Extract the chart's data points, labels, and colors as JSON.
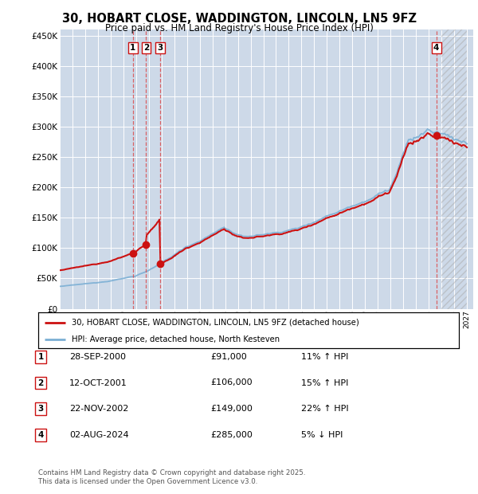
{
  "title": "30, HOBART CLOSE, WADDINGTON, LINCOLN, LN5 9FZ",
  "subtitle": "Price paid vs. HM Land Registry's House Price Index (HPI)",
  "background_color": "#dce6f0",
  "plot_bg_color": "#cdd9e8",
  "grid_color": "#ffffff",
  "hpi_color": "#7bafd4",
  "price_color": "#cc1111",
  "dashed_color": "#dd4444",
  "ylim": [
    0,
    460000
  ],
  "yticks": [
    0,
    50000,
    100000,
    150000,
    200000,
    250000,
    300000,
    350000,
    400000,
    450000
  ],
  "xlim_start": 1995.0,
  "xlim_end": 2027.5,
  "transaction_labels": [
    "1",
    "2",
    "3",
    "4"
  ],
  "transaction_dates_year": [
    2000.75,
    2001.79,
    2002.9,
    2024.59
  ],
  "transaction_prices": [
    91000,
    106000,
    149000,
    285000
  ],
  "legend_line1": "30, HOBART CLOSE, WADDINGTON, LINCOLN, LN5 9FZ (detached house)",
  "legend_line2": "HPI: Average price, detached house, North Kesteven",
  "table_entries": [
    {
      "num": "1",
      "date": "28-SEP-2000",
      "price": "£91,000",
      "hpi": "11% ↑ HPI"
    },
    {
      "num": "2",
      "date": "12-OCT-2001",
      "price": "£106,000",
      "hpi": "15% ↑ HPI"
    },
    {
      "num": "3",
      "date": "22-NOV-2002",
      "price": "£149,000",
      "hpi": "22% ↑ HPI"
    },
    {
      "num": "4",
      "date": "02-AUG-2024",
      "price": "£285,000",
      "hpi": "5% ↓ HPI"
    }
  ],
  "footer": "Contains HM Land Registry data © Crown copyright and database right 2025.\nThis data is licensed under the Open Government Licence v3.0."
}
